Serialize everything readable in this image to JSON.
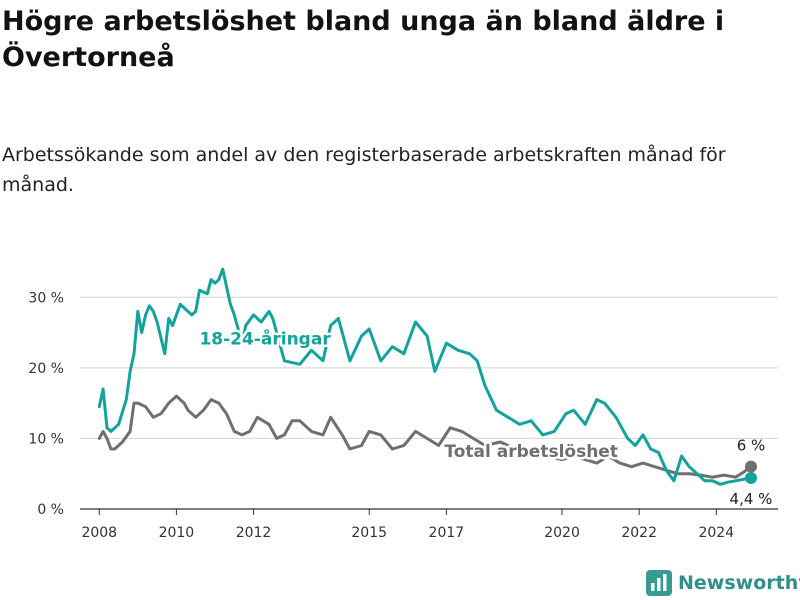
{
  "title": "Högre arbetslöshet bland unga än bland äldre i Övertorneå",
  "subtitle": "Arbetssökande som andel av den registerbaserade arbetskraften månad för månad.",
  "brand": {
    "name": "Newsworthy",
    "icon": "bar-chart-logo-icon"
  },
  "chart_data": {
    "type": "line",
    "grid": true,
    "ylim": [
      0,
      35
    ],
    "xlim": [
      2007.5,
      2025.6
    ],
    "y_ticks": [
      0,
      10,
      20,
      30
    ],
    "y_tick_labels": [
      "0 %",
      "10 %",
      "20 %",
      "30 %"
    ],
    "x_ticks": [
      2008,
      2010,
      2012,
      2015,
      2017,
      2020,
      2022,
      2024
    ],
    "x_tick_labels": [
      "2008",
      "2010",
      "2012",
      "2015",
      "2017",
      "2020",
      "2022",
      "2024"
    ],
    "series": [
      {
        "name": "18-24-åringar",
        "color": "#13a39b",
        "end_label": "4,4 %",
        "x": [
          2008.0,
          2008.1,
          2008.2,
          2008.3,
          2008.5,
          2008.7,
          2008.8,
          2008.9,
          2009.0,
          2009.1,
          2009.2,
          2009.3,
          2009.4,
          2009.5,
          2009.7,
          2009.8,
          2009.9,
          2010.0,
          2010.1,
          2010.2,
          2010.4,
          2010.5,
          2010.6,
          2010.8,
          2010.9,
          2011.0,
          2011.1,
          2011.2,
          2011.4,
          2011.5,
          2011.7,
          2011.8,
          2012.0,
          2012.2,
          2012.4,
          2012.5,
          2012.8,
          2013.2,
          2013.5,
          2013.8,
          2014.0,
          2014.2,
          2014.5,
          2014.8,
          2015.0,
          2015.3,
          2015.6,
          2015.9,
          2016.2,
          2016.5,
          2016.7,
          2017.0,
          2017.3,
          2017.6,
          2017.8,
          2018.0,
          2018.3,
          2018.6,
          2018.9,
          2019.2,
          2019.5,
          2019.8,
          2020.1,
          2020.3,
          2020.6,
          2020.9,
          2021.1,
          2021.4,
          2021.7,
          2021.9,
          2022.1,
          2022.3,
          2022.5,
          2022.7,
          2022.9,
          2023.1,
          2023.3,
          2023.5,
          2023.7,
          2023.9,
          2024.1,
          2024.3,
          2024.5,
          2024.7,
          2024.9
        ],
        "values": [
          14.5,
          17.0,
          11.5,
          11.0,
          12.0,
          15.5,
          19.5,
          22.0,
          28.0,
          25.0,
          27.5,
          28.8,
          28.0,
          26.5,
          22.0,
          27.0,
          26.0,
          27.5,
          29.0,
          28.5,
          27.5,
          28.0,
          31.0,
          30.5,
          32.5,
          32.0,
          32.5,
          34.0,
          29.0,
          27.5,
          23.5,
          26.0,
          27.5,
          26.5,
          28.0,
          27.0,
          21.0,
          20.5,
          22.5,
          21.0,
          26.0,
          27.0,
          21.0,
          24.5,
          25.5,
          21.0,
          23.0,
          22.0,
          26.5,
          24.5,
          19.5,
          23.5,
          22.5,
          22.0,
          21.0,
          17.5,
          14.0,
          13.0,
          12.0,
          12.5,
          10.5,
          11.0,
          13.5,
          14.0,
          12.0,
          15.5,
          15.0,
          13.0,
          10.0,
          9.0,
          10.5,
          8.5,
          8.0,
          5.5,
          4.0,
          7.5,
          6.0,
          5.0,
          4.0,
          4.0,
          3.5,
          3.8,
          4.0,
          4.2,
          4.4
        ]
      },
      {
        "name": "Total arbetslöshet",
        "color": "#6f6f73",
        "end_label": "6 %",
        "x": [
          2008.0,
          2008.1,
          2008.2,
          2008.3,
          2008.4,
          2008.6,
          2008.8,
          2008.9,
          2009.0,
          2009.2,
          2009.4,
          2009.6,
          2009.8,
          2010.0,
          2010.2,
          2010.3,
          2010.5,
          2010.7,
          2010.9,
          2011.1,
          2011.3,
          2011.5,
          2011.7,
          2011.9,
          2012.1,
          2012.4,
          2012.6,
          2012.8,
          2013.0,
          2013.2,
          2013.5,
          2013.8,
          2014.0,
          2014.3,
          2014.5,
          2014.8,
          2015.0,
          2015.3,
          2015.6,
          2015.9,
          2016.2,
          2016.5,
          2016.8,
          2017.1,
          2017.4,
          2017.7,
          2018.0,
          2018.4,
          2018.8,
          2019.2,
          2019.6,
          2020.0,
          2020.3,
          2020.6,
          2020.9,
          2021.2,
          2021.5,
          2021.8,
          2022.1,
          2022.4,
          2022.7,
          2023.0,
          2023.3,
          2023.6,
          2023.9,
          2024.2,
          2024.5,
          2024.7,
          2024.9
        ],
        "values": [
          10.0,
          11.0,
          10.0,
          8.5,
          8.5,
          9.5,
          11.0,
          15.0,
          15.0,
          14.5,
          13.0,
          13.5,
          15.0,
          16.0,
          15.0,
          14.0,
          13.0,
          14.0,
          15.5,
          15.0,
          13.5,
          11.0,
          10.5,
          11.0,
          13.0,
          12.0,
          10.0,
          10.5,
          12.5,
          12.5,
          11.0,
          10.5,
          13.0,
          10.5,
          8.5,
          9.0,
          11.0,
          10.5,
          8.5,
          9.0,
          11.0,
          10.0,
          9.0,
          11.5,
          11.0,
          10.0,
          9.0,
          9.5,
          8.5,
          8.0,
          7.5,
          7.0,
          7.5,
          7.0,
          6.5,
          7.5,
          6.5,
          6.0,
          6.5,
          6.0,
          5.5,
          5.0,
          5.0,
          4.8,
          4.5,
          4.8,
          4.5,
          5.2,
          6.0
        ]
      }
    ],
    "annotations": [
      {
        "text": "18-24-åringar",
        "series": "18-24-åringar"
      },
      {
        "text": "Total arbetslöshet",
        "series": "Total arbetslöshet"
      }
    ]
  }
}
